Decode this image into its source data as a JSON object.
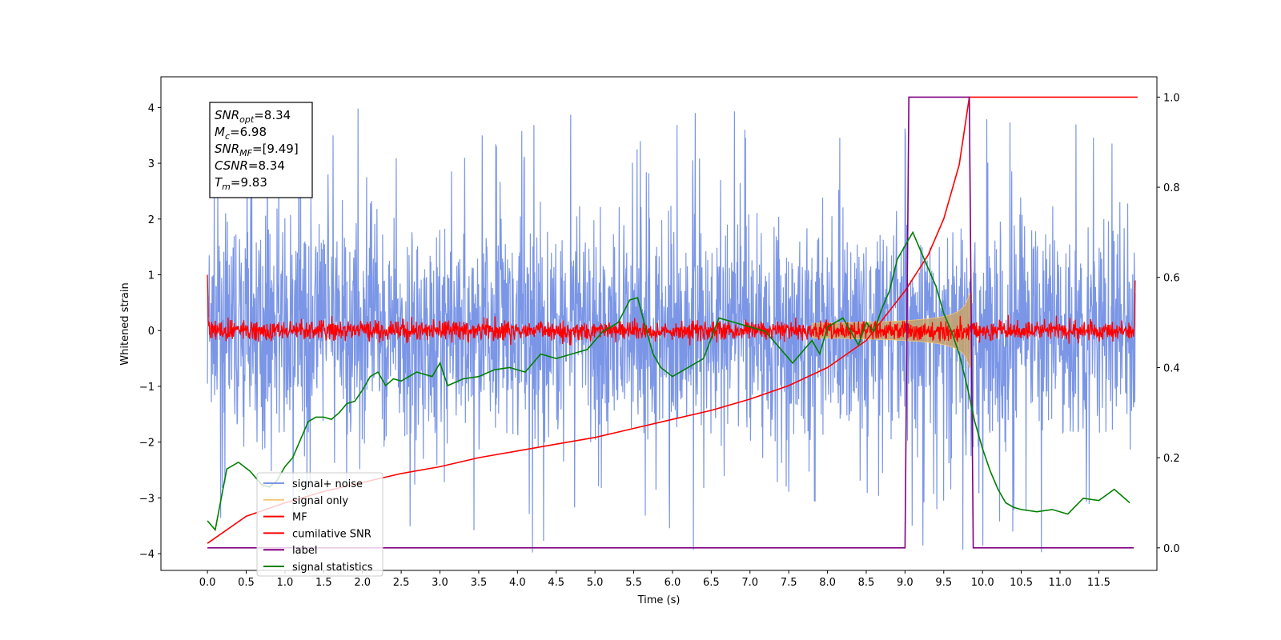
{
  "chart_data": {
    "type": "line",
    "xlabel": "Time (s)",
    "ylabel": "Whitened strain",
    "xlim": [
      -0.6,
      12.25
    ],
    "ylim": [
      -4.3,
      4.55
    ],
    "ylim_right": [
      -0.05,
      1.045
    ],
    "x_ticks": [
      "0.0",
      "0.5",
      "1.0",
      "1.5",
      "2.0",
      "2.5",
      "3.0",
      "3.5",
      "4.0",
      "4.5",
      "5.0",
      "5.5",
      "6.0",
      "6.5",
      "7.0",
      "7.5",
      "8.0",
      "8.5",
      "9.0",
      "9.5",
      "10.0",
      "10.5",
      "11.0",
      "11.5"
    ],
    "y_ticks": [
      "4",
      "3",
      "2",
      "1",
      "0",
      "−1",
      "−2",
      "−3",
      "−4"
    ],
    "y_ticks_right": [
      "1.0",
      "0.8",
      "0.6",
      "0.4",
      "0.2",
      "0.0"
    ],
    "grid": false,
    "legend_position": "lower-left",
    "stats_box": [
      {
        "sym": "SNR",
        "sub": "opt",
        "val": "=8.34"
      },
      {
        "sym": "M",
        "sub": "c",
        "val": "=6.98"
      },
      {
        "sym": "SNR",
        "sub": "MF",
        "val": "=[9.49]"
      },
      {
        "sym": "CSNR",
        "sub": "",
        "val": "=8.34"
      },
      {
        "sym": "T",
        "sub": "m",
        "val": "=9.83"
      }
    ],
    "series": [
      {
        "name": "signal+ noise",
        "color": "#7b96e6",
        "axis": "left",
        "description_only": true
      },
      {
        "name": "signal only",
        "color": "#f5c77a",
        "axis": "left",
        "description_only": true
      },
      {
        "name": "MF",
        "color": "#ff0000",
        "axis": "left",
        "description_only": true
      },
      {
        "name": "cumilative SNR",
        "color": "#ff0000",
        "axis": "right",
        "x": [
          0.0,
          0.5,
          1.0,
          1.5,
          2.0,
          2.5,
          3.0,
          3.5,
          4.0,
          4.5,
          5.0,
          5.5,
          6.0,
          6.5,
          7.0,
          7.5,
          8.0,
          8.5,
          9.0,
          9.3,
          9.5,
          9.7,
          9.83,
          10.0,
          11.0,
          12.0
        ],
        "y": [
          0.01,
          0.07,
          0.1,
          0.125,
          0.145,
          0.165,
          0.18,
          0.2,
          0.215,
          0.23,
          0.245,
          0.265,
          0.285,
          0.305,
          0.33,
          0.36,
          0.4,
          0.46,
          0.57,
          0.65,
          0.73,
          0.85,
          1.0,
          1.0,
          1.0,
          1.0
        ]
      },
      {
        "name": "label",
        "color": "#800080",
        "axis": "right",
        "x": [
          0.0,
          9.0,
          9.05,
          9.83,
          9.88,
          11.95
        ],
        "y": [
          0.0,
          0.0,
          1.0,
          1.0,
          0.0,
          0.0
        ]
      },
      {
        "name": "signal statistics",
        "color": "#008000",
        "axis": "right",
        "x": [
          0.0,
          0.1,
          0.25,
          0.4,
          0.55,
          0.7,
          0.8,
          0.9,
          1.0,
          1.1,
          1.2,
          1.3,
          1.4,
          1.5,
          1.6,
          1.7,
          1.8,
          1.9,
          2.0,
          2.1,
          2.2,
          2.3,
          2.4,
          2.5,
          2.7,
          2.9,
          3.0,
          3.1,
          3.3,
          3.5,
          3.7,
          3.9,
          4.1,
          4.3,
          4.5,
          4.7,
          4.9,
          5.1,
          5.3,
          5.45,
          5.55,
          5.65,
          5.75,
          5.85,
          6.0,
          6.2,
          6.4,
          6.6,
          6.8,
          7.0,
          7.2,
          7.4,
          7.55,
          7.7,
          7.8,
          7.9,
          8.0,
          8.2,
          8.4,
          8.5,
          8.6,
          8.7,
          8.8,
          8.9,
          9.0,
          9.1,
          9.2,
          9.3,
          9.4,
          9.5,
          9.6,
          9.7,
          9.8,
          9.9,
          10.0,
          10.1,
          10.2,
          10.3,
          10.4,
          10.5,
          10.7,
          10.9,
          11.1,
          11.3,
          11.5,
          11.7,
          11.9
        ],
        "y": [
          0.06,
          0.04,
          0.175,
          0.19,
          0.17,
          0.14,
          0.135,
          0.15,
          0.18,
          0.2,
          0.24,
          0.28,
          0.29,
          0.29,
          0.285,
          0.3,
          0.32,
          0.325,
          0.35,
          0.38,
          0.39,
          0.36,
          0.375,
          0.37,
          0.39,
          0.38,
          0.41,
          0.36,
          0.375,
          0.38,
          0.395,
          0.4,
          0.39,
          0.43,
          0.42,
          0.43,
          0.44,
          0.48,
          0.5,
          0.55,
          0.555,
          0.49,
          0.43,
          0.4,
          0.38,
          0.4,
          0.42,
          0.51,
          0.5,
          0.49,
          0.48,
          0.44,
          0.41,
          0.44,
          0.46,
          0.43,
          0.49,
          0.51,
          0.45,
          0.5,
          0.48,
          0.53,
          0.57,
          0.64,
          0.67,
          0.7,
          0.66,
          0.62,
          0.58,
          0.52,
          0.48,
          0.43,
          0.36,
          0.28,
          0.22,
          0.17,
          0.13,
          0.1,
          0.09,
          0.085,
          0.08,
          0.085,
          0.075,
          0.11,
          0.105,
          0.13,
          0.1
        ]
      }
    ]
  }
}
